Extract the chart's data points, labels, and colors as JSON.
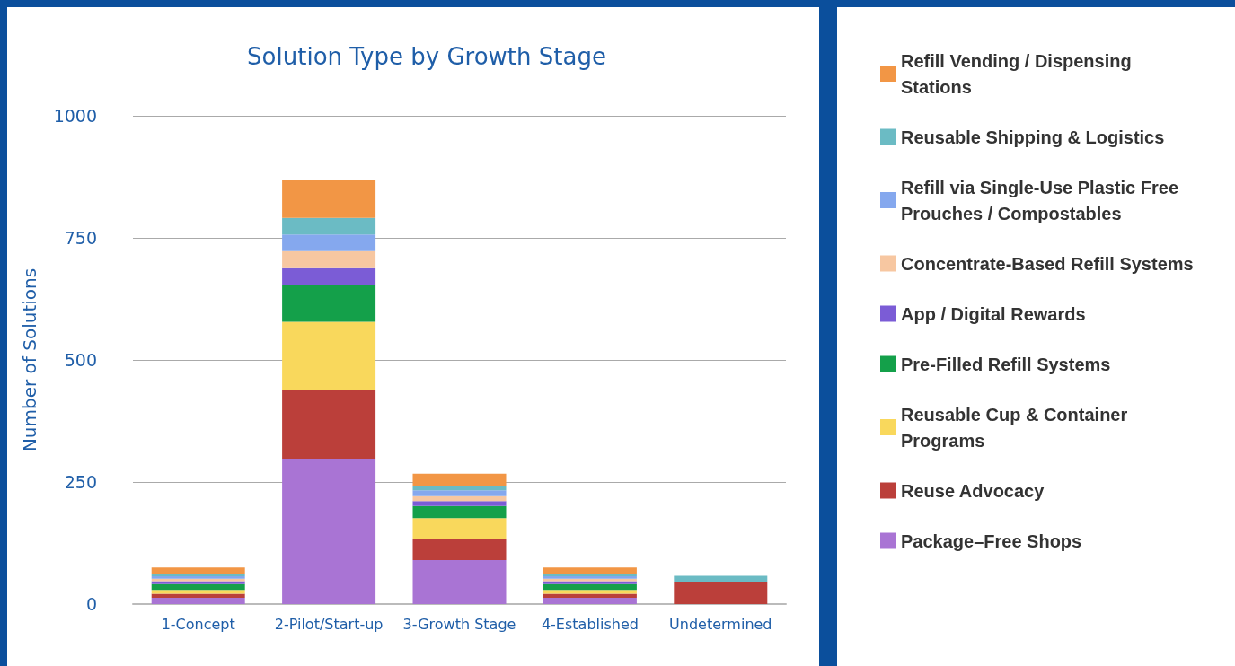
{
  "chart_data": {
    "type": "bar",
    "title": "Solution Type by Growth Stage",
    "ylabel": "Number of Solutions",
    "categories": [
      "1-Concept",
      "2-Pilot/Start-up",
      "3-Growth Stage",
      "4-Established",
      "Undetermined"
    ],
    "stacked": true,
    "series": [
      {
        "name": "Package–Free Shops",
        "color": "#a974d4",
        "values": [
          13,
          298,
          90,
          13,
          null
        ]
      },
      {
        "name": "Reuse Advocacy",
        "color": "#bb3f3a",
        "values": [
          8,
          140,
          43,
          8,
          46
        ]
      },
      {
        "name": "Reusable Cup & Container Programs",
        "color": "#f9d85c",
        "values": [
          8,
          140,
          43,
          8,
          null
        ]
      },
      {
        "name": "Pre-Filled Refill Systems",
        "color": "#14a04a",
        "values": [
          12,
          75,
          25,
          12,
          null
        ]
      },
      {
        "name": "App / Digital Rewards",
        "color": "#7b5cd6",
        "values": [
          6,
          35,
          10,
          6,
          null
        ]
      },
      {
        "name": "Concentrate-Based Refill Systems",
        "color": "#f7c7a1",
        "values": [
          5,
          35,
          10,
          5,
          null
        ]
      },
      {
        "name": "Refill via Single-Use Plastic Free Prouches / Compostables",
        "color": "#85a8ee",
        "values": [
          5,
          34,
          12,
          5,
          null
        ]
      },
      {
        "name": "Reusable Shipping & Logistics",
        "color": "#6bbbc4",
        "values": [
          4,
          34,
          9,
          4,
          12
        ]
      },
      {
        "name": "Refill Vending / Dispensing Stations",
        "color": "#f29645",
        "values": [
          14,
          78,
          25,
          14,
          null
        ]
      }
    ],
    "ylim": [
      0,
      1000
    ],
    "yticks": [
      0,
      250,
      500,
      750,
      1000
    ],
    "grid": "y",
    "legend": "right"
  }
}
